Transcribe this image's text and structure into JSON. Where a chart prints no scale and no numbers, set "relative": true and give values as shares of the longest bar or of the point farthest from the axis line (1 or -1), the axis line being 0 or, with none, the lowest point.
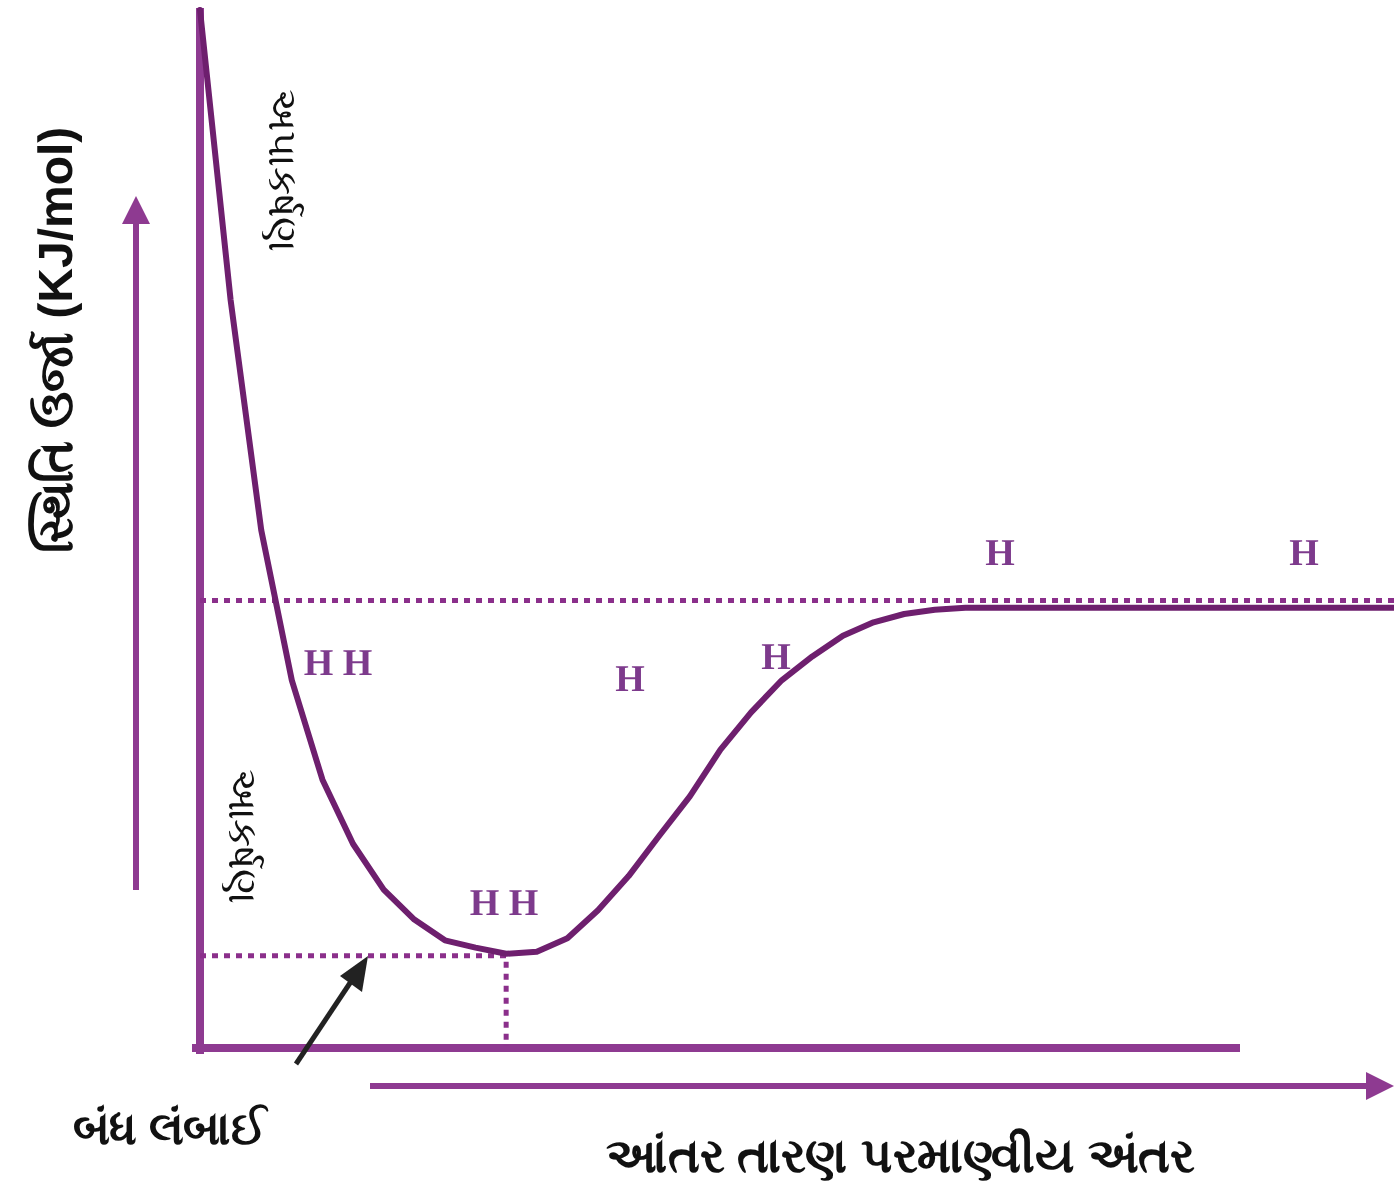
{
  "chart_data": {
    "type": "line",
    "relative": true,
    "marker": "none",
    "line_style": "solid",
    "ylabel": "સ્થિતિ ઉર્જા (KJ/mol)",
    "xlabel": "આંતર તારણ પરમાણ્વીય અંતર",
    "categories": [
      null,
      null,
      null,
      null,
      null,
      null,
      null,
      null,
      null,
      null,
      null,
      null,
      null,
      null,
      null,
      null,
      null,
      null,
      null,
      null,
      null,
      null,
      null,
      null,
      null,
      null,
      null,
      null,
      null,
      null,
      null,
      null,
      null,
      null,
      null,
      null,
      null,
      null,
      null,
      null
    ],
    "series": [
      {
        "color": "#6e1f6e",
        "values": [
          1.0,
          0.72,
          0.498,
          0.353,
          0.257,
          0.195,
          0.151,
          0.122,
          0.102,
          0.095,
          0.089,
          0.091,
          0.104,
          0.131,
          0.164,
          0.203,
          0.241,
          0.286,
          0.322,
          0.353,
          0.376,
          0.396,
          0.409,
          0.417,
          0.421,
          0.423,
          0.423,
          0.423,
          0.423,
          0.423,
          0.423,
          0.423,
          0.423,
          0.423,
          0.423,
          0.423,
          0.423,
          0.423,
          0.423,
          0.423
        ]
      }
    ],
    "ref_lines": [
      {
        "axis": "y",
        "value": 0.43,
        "line_style": "dotted",
        "color": "#8b2f8b"
      },
      {
        "axis": "y",
        "value": 0.087,
        "line_style": "dotted",
        "color": "#8b2f8b",
        "label": "બંધ લંબાઈ"
      }
    ],
    "annotations": [
      "અપાકર્ષણ",
      "આકર્ષણ",
      "H H",
      "H",
      "H",
      "H H",
      "H",
      "H"
    ]
  }
}
